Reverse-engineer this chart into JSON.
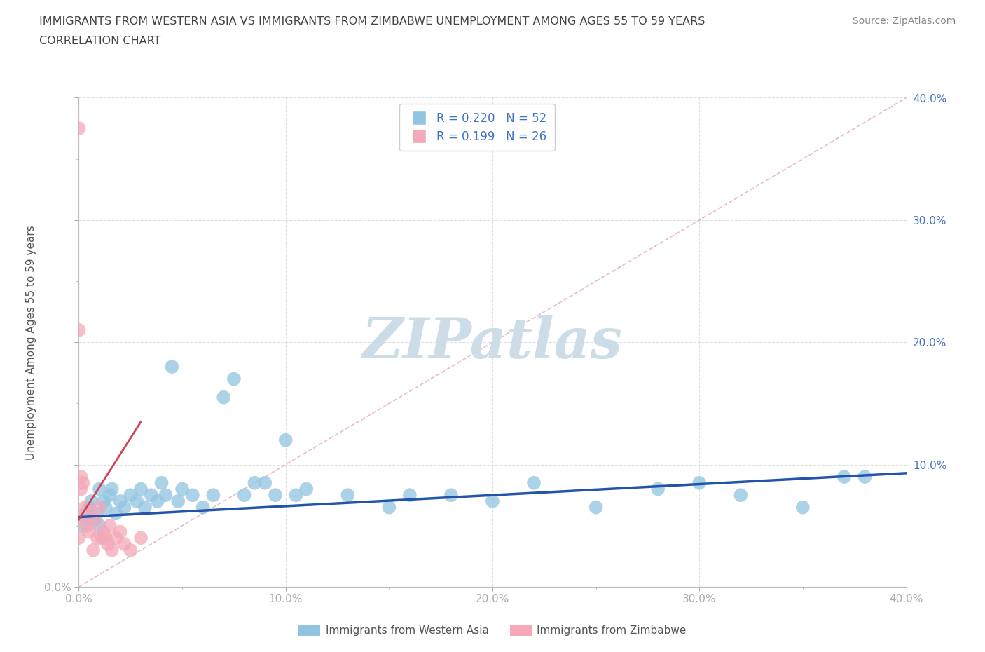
{
  "title_line1": "IMMIGRANTS FROM WESTERN ASIA VS IMMIGRANTS FROM ZIMBABWE UNEMPLOYMENT AMONG AGES 55 TO 59 YEARS",
  "title_line2": "CORRELATION CHART",
  "source_text": "Source: ZipAtlas.com",
  "ylabel": "Unemployment Among Ages 55 to 59 years",
  "xlim": [
    0.0,
    0.4
  ],
  "ylim": [
    0.0,
    0.4
  ],
  "major_ticks": [
    0.0,
    0.1,
    0.2,
    0.3,
    0.4
  ],
  "minor_ticks": [
    0.05,
    0.15,
    0.25,
    0.35
  ],
  "tick_labels": [
    "0.0%",
    "10.0%",
    "20.0%",
    "30.0%",
    "40.0%"
  ],
  "blue_color": "#91c4e0",
  "pink_color": "#f4a8b8",
  "blue_line_color": "#2255aa",
  "pink_line_color": "#cc4455",
  "diag_line_color": "#dda0a8",
  "legend_text_color": "#4472c4",
  "axis_label_color": "#4472c4",
  "title_color": "#444444",
  "source_color": "#888888",
  "grid_color": "#e0e0e0",
  "ylabel_color": "#555555",
  "watermark": "ZIPatlas",
  "watermark_color": "#ccdde8",
  "western_asia_x": [
    0.002,
    0.003,
    0.004,
    0.005,
    0.006,
    0.008,
    0.009,
    0.01,
    0.01,
    0.012,
    0.013,
    0.015,
    0.016,
    0.018,
    0.02,
    0.022,
    0.025,
    0.028,
    0.03,
    0.032,
    0.035,
    0.038,
    0.04,
    0.042,
    0.045,
    0.048,
    0.05,
    0.055,
    0.06,
    0.065,
    0.07,
    0.075,
    0.08,
    0.085,
    0.09,
    0.095,
    0.1,
    0.105,
    0.11,
    0.13,
    0.15,
    0.16,
    0.18,
    0.2,
    0.22,
    0.25,
    0.28,
    0.3,
    0.32,
    0.35,
    0.37,
    0.38
  ],
  "western_asia_y": [
    0.05,
    0.06,
    0.055,
    0.065,
    0.07,
    0.055,
    0.06,
    0.08,
    0.05,
    0.07,
    0.065,
    0.075,
    0.08,
    0.06,
    0.07,
    0.065,
    0.075,
    0.07,
    0.08,
    0.065,
    0.075,
    0.07,
    0.085,
    0.075,
    0.18,
    0.07,
    0.08,
    0.075,
    0.065,
    0.075,
    0.155,
    0.17,
    0.075,
    0.085,
    0.085,
    0.075,
    0.12,
    0.075,
    0.08,
    0.075,
    0.065,
    0.075,
    0.075,
    0.07,
    0.085,
    0.065,
    0.08,
    0.085,
    0.075,
    0.065,
    0.09,
    0.09
  ],
  "zimbabwe_x": [
    0.0,
    0.0,
    0.0,
    0.0,
    0.001,
    0.001,
    0.002,
    0.003,
    0.004,
    0.005,
    0.006,
    0.007,
    0.008,
    0.009,
    0.01,
    0.011,
    0.012,
    0.013,
    0.014,
    0.015,
    0.016,
    0.018,
    0.02,
    0.022,
    0.025,
    0.03
  ],
  "zimbabwe_y": [
    0.375,
    0.21,
    0.055,
    0.04,
    0.09,
    0.08,
    0.085,
    0.065,
    0.05,
    0.045,
    0.06,
    0.03,
    0.055,
    0.04,
    0.065,
    0.04,
    0.045,
    0.04,
    0.035,
    0.05,
    0.03,
    0.04,
    0.045,
    0.035,
    0.03,
    0.04
  ],
  "blue_trend_x": [
    0.0,
    0.4
  ],
  "blue_trend_y": [
    0.057,
    0.093
  ],
  "pink_trend_x": [
    0.0,
    0.03
  ],
  "pink_trend_y": [
    0.055,
    0.135
  ]
}
